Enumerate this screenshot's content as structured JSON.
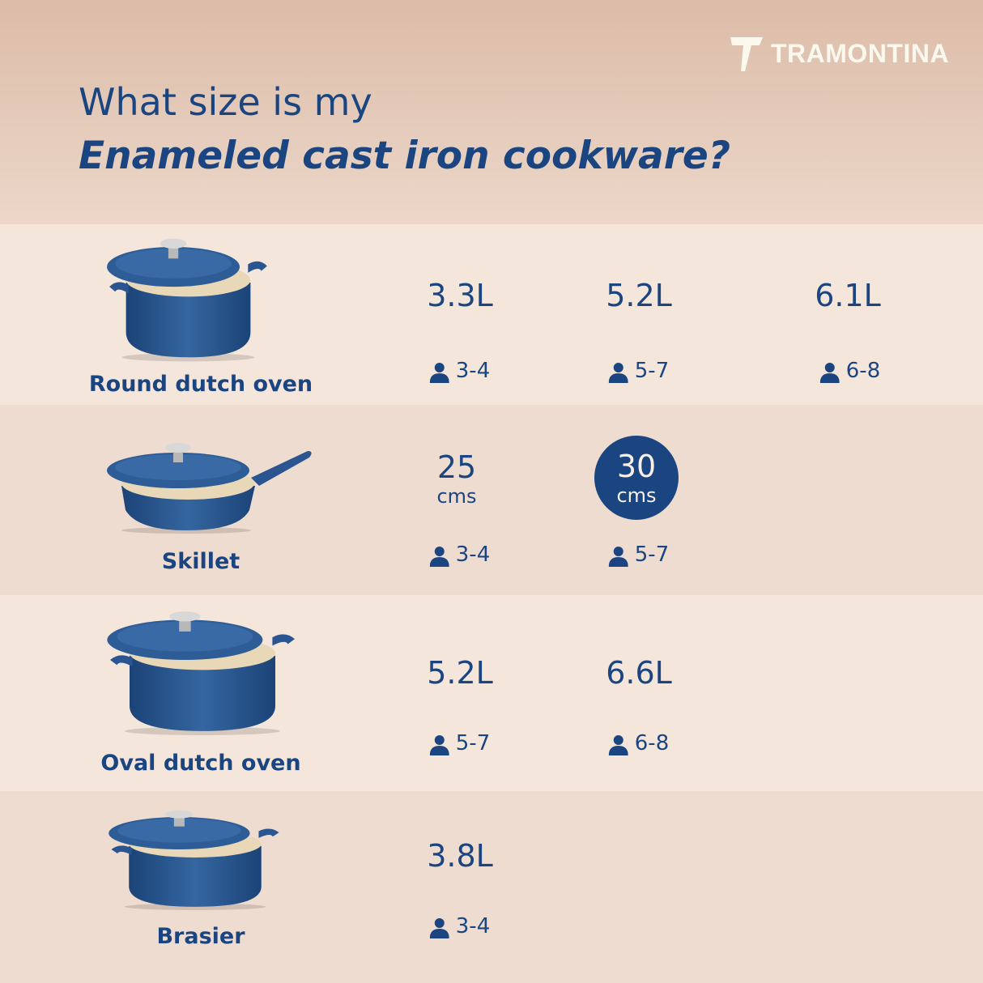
{
  "brand": "TRAMONTINA",
  "title_line1": "What size is my",
  "title_line2": "Enameled cast iron cookware?",
  "colors": {
    "primary": "#1a4580",
    "row_light": "#f5e6dc",
    "row_dark": "#efdcd0",
    "logo": "#fbf8ee"
  },
  "products": [
    {
      "name": "Round dutch oven",
      "sizes": [
        {
          "value": "3.3L",
          "serves": "3-4"
        },
        {
          "value": "5.2L",
          "serves": "5-7"
        },
        {
          "value": "6.1L",
          "serves": "6-8"
        }
      ]
    },
    {
      "name": "Skillet",
      "sizes": [
        {
          "value": "25",
          "unit": "cms",
          "serves": "3-4"
        },
        {
          "value": "30",
          "unit": "cms",
          "serves": "5-7",
          "highlighted": true
        }
      ]
    },
    {
      "name": "Oval dutch oven",
      "sizes": [
        {
          "value": "5.2L",
          "serves": "5-7"
        },
        {
          "value": "6.6L",
          "serves": "6-8"
        }
      ]
    },
    {
      "name": "Brasier",
      "sizes": [
        {
          "value": "3.8L",
          "serves": "3-4"
        }
      ]
    }
  ],
  "icons": {
    "serves": "person-icon"
  }
}
